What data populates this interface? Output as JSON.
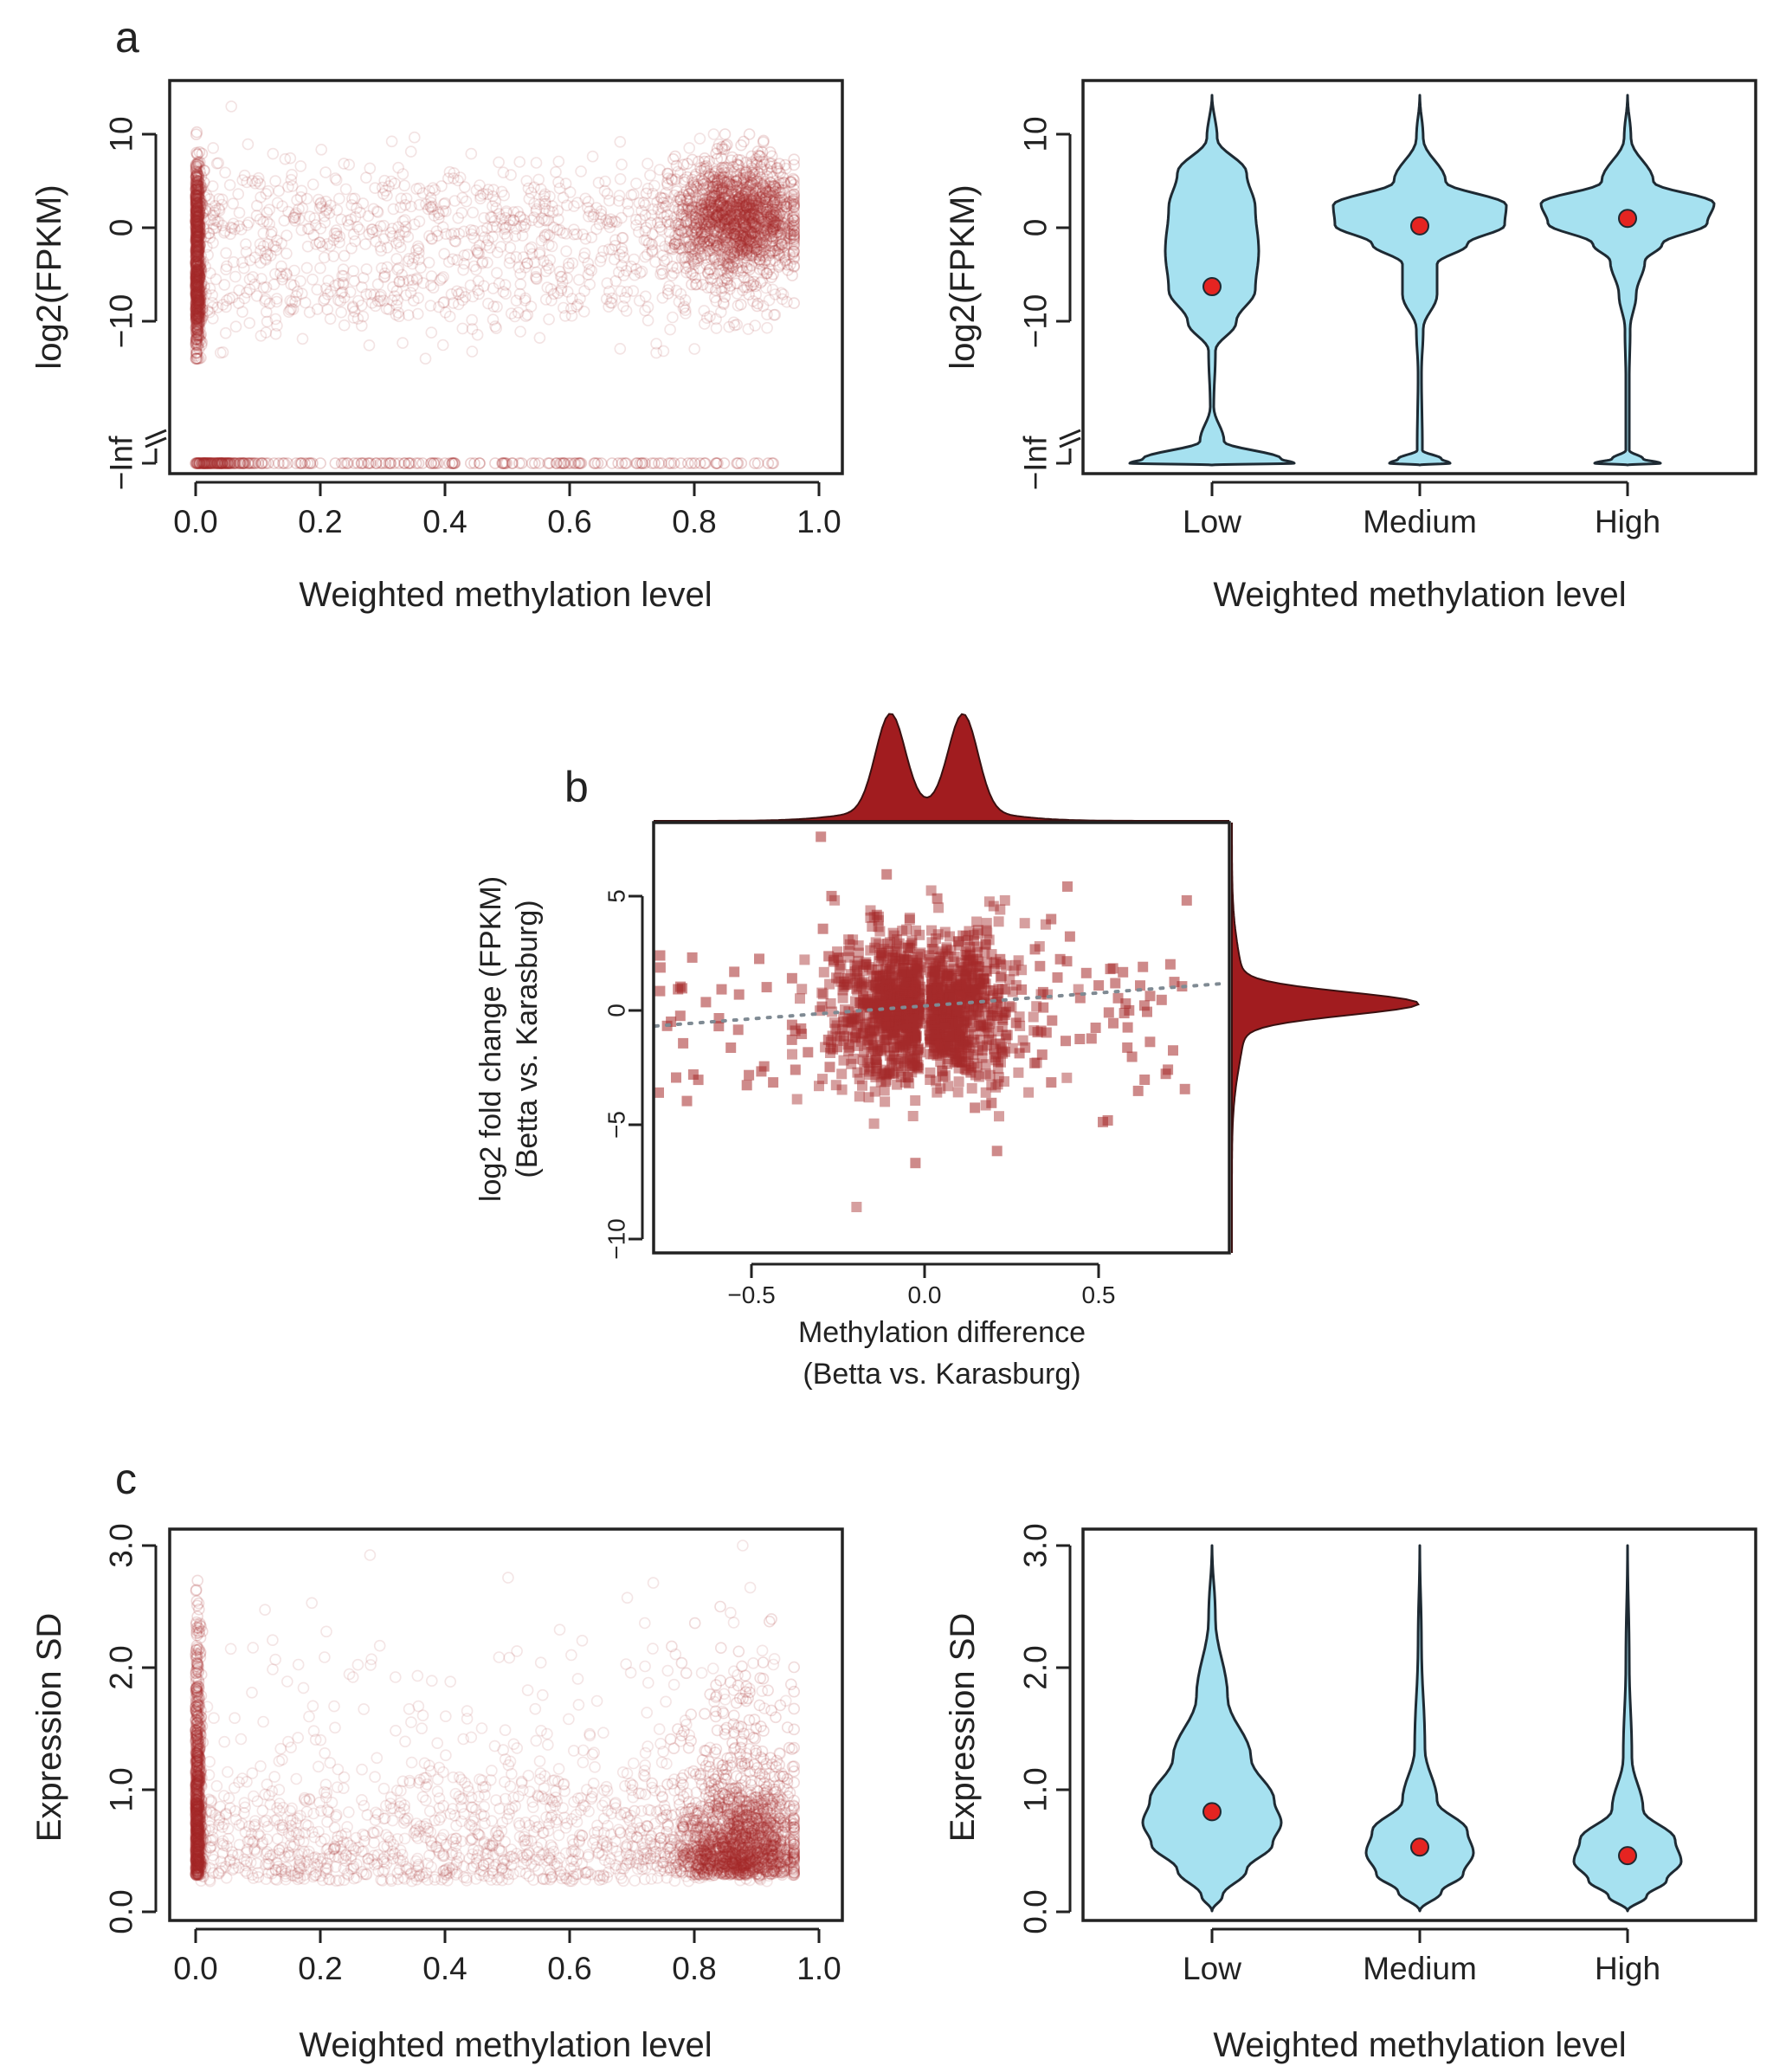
{
  "panel_labels": {
    "a": "a",
    "b": "b",
    "c": "c"
  },
  "colors": {
    "scatter": "#a52a2a",
    "violin_fill": "#a6e1f0",
    "violin_stroke": "#1e2a33",
    "median_dot": "#e52421",
    "density": "#a11c1f",
    "trend": "#7f8a93"
  },
  "chart_data": [
    {
      "id": "a-left",
      "type": "scatter",
      "xlabel": "Weighted methylation level",
      "ylabel": "log2(FPKM)",
      "xlim": [
        0.0,
        1.0
      ],
      "ylim": [
        -15,
        15
      ],
      "xticks": [
        "0.0",
        "0.2",
        "0.4",
        "0.6",
        "0.8",
        "1.0"
      ],
      "yticks": [
        "10",
        "0",
        "−10"
      ],
      "inf_label": "−Inf",
      "description_clusters": [
        {
          "x": 0.0,
          "y_range": [
            -13,
            11
          ],
          "density": "very high"
        },
        {
          "x_range": [
            0.0,
            0.95
          ],
          "y": 0,
          "density": "low"
        },
        {
          "x_range": [
            0.78,
            0.95
          ],
          "y": 1,
          "density": "high"
        },
        {
          "x_range": [
            0.0,
            0.95
          ],
          "y": "-Inf",
          "density": "row"
        }
      ]
    },
    {
      "id": "a-right",
      "type": "violin",
      "xlabel": "Weighted methylation level",
      "ylabel": "log2(FPKM)",
      "categories": [
        "Low",
        "Medium",
        "High"
      ],
      "ylim": [
        -15,
        15
      ],
      "yticks": [
        "10",
        "0",
        "−10"
      ],
      "inf_label": "−Inf",
      "medians": [
        -6.3,
        0.2,
        1.0
      ]
    },
    {
      "id": "b",
      "type": "scatter",
      "xlabel": "Methylation difference",
      "xlabel2": "(Betta vs. Karasburg)",
      "ylabel": "log2 fold change (FPKM)",
      "ylabel2": "(Betta vs. Karasburg)",
      "xlim": [
        -0.8,
        0.9
      ],
      "ylim": [
        -10.5,
        8
      ],
      "xticks": [
        "−0.5",
        "0.0",
        "0.5"
      ],
      "yticks": [
        "5",
        "0",
        "−5",
        "−10"
      ],
      "trend": {
        "slope": 1.1,
        "intercept": 0.2
      },
      "marginal_density": {
        "x_peaks": [
          -0.1,
          0.11
        ],
        "y_peak": 0.3
      }
    },
    {
      "id": "c-left",
      "type": "scatter",
      "xlabel": "Weighted methylation level",
      "ylabel": "Expression SD",
      "xlim": [
        0.0,
        1.0
      ],
      "ylim": [
        0.0,
        3.0
      ],
      "xticks": [
        "0.0",
        "0.2",
        "0.4",
        "0.6",
        "0.8",
        "1.0"
      ],
      "yticks": [
        "0.0",
        "1.0",
        "2.0",
        "3.0"
      ]
    },
    {
      "id": "c-right",
      "type": "violin",
      "xlabel": "Weighted methylation level",
      "ylabel": "Expression SD",
      "categories": [
        "Low",
        "Medium",
        "High"
      ],
      "ylim": [
        0.0,
        3.0
      ],
      "yticks": [
        "0.0",
        "1.0",
        "2.0",
        "3.0"
      ],
      "medians": [
        0.82,
        0.53,
        0.46
      ]
    }
  ]
}
